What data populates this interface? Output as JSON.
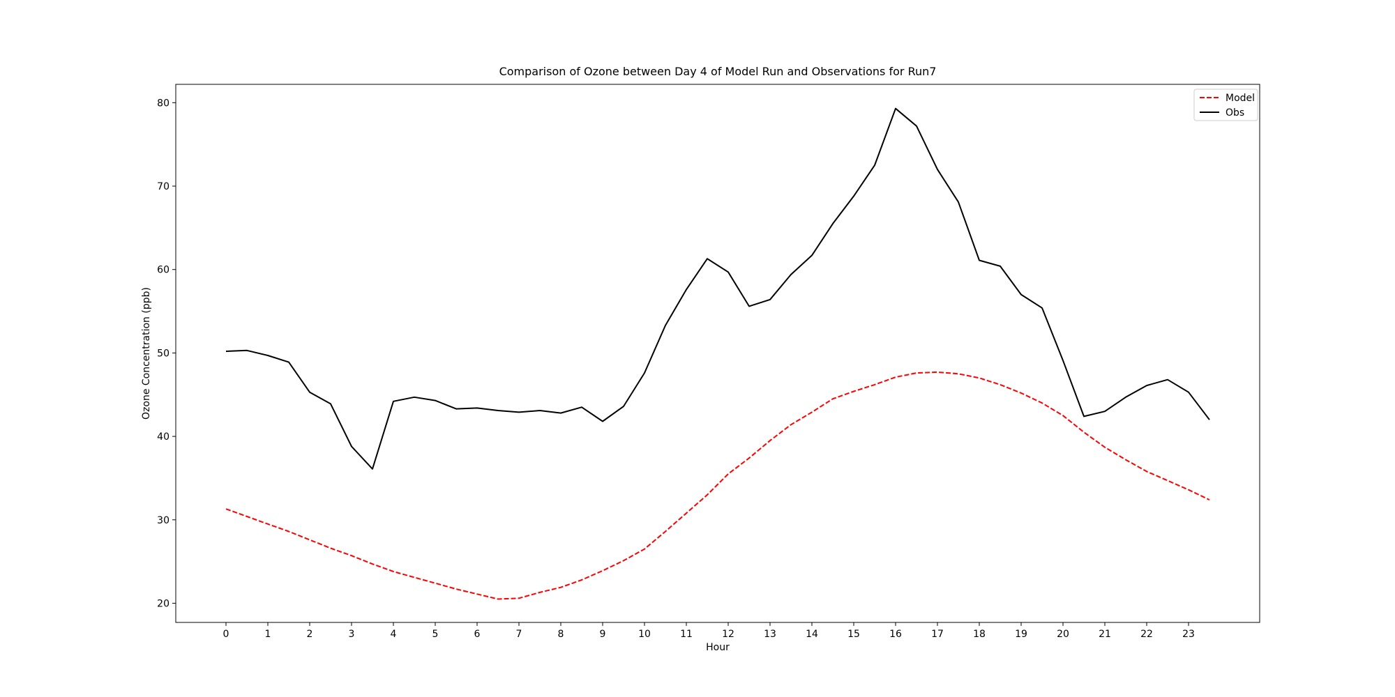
{
  "chart_data": {
    "type": "line",
    "title": "Comparison of Ozone between Day 4 of Model Run and Observations for Run7",
    "xlabel": "Hour",
    "ylabel": "Ozone Concentration (ppb)",
    "xlim": [
      -1.2,
      24.7
    ],
    "ylim": [
      17.7,
      82.2
    ],
    "xticks": [
      0,
      1,
      2,
      3,
      4,
      5,
      6,
      7,
      8,
      9,
      10,
      11,
      12,
      13,
      14,
      15,
      16,
      17,
      18,
      19,
      20,
      21,
      22,
      23
    ],
    "yticks": [
      20,
      30,
      40,
      50,
      60,
      70,
      80
    ],
    "grid": false,
    "legend_position": "top-right",
    "x": [
      0,
      0.5,
      1,
      1.5,
      2,
      2.5,
      3,
      3.5,
      4,
      4.5,
      5,
      5.5,
      6,
      6.5,
      7,
      7.5,
      8,
      8.5,
      9,
      9.5,
      10,
      10.5,
      11,
      11.5,
      12,
      12.5,
      13,
      13.5,
      14,
      14.5,
      15,
      15.5,
      16,
      16.5,
      17,
      17.5,
      18,
      18.5,
      19,
      19.5,
      20,
      20.5,
      21,
      21.5,
      22,
      22.5,
      23,
      23.5
    ],
    "series": [
      {
        "name": "Model",
        "color": "#ff0000",
        "style": "dashed",
        "values": [
          31.3,
          30.4,
          29.5,
          28.6,
          27.6,
          26.6,
          25.7,
          24.7,
          23.8,
          23.1,
          22.4,
          21.7,
          21.1,
          20.5,
          20.6,
          21.3,
          21.9,
          22.8,
          23.9,
          25.1,
          26.5,
          28.6,
          30.8,
          33.0,
          35.5,
          37.4,
          39.5,
          41.4,
          42.9,
          44.5,
          45.4,
          46.2,
          47.1,
          47.6,
          47.7,
          47.5,
          47.0,
          46.2,
          45.2,
          44.0,
          42.5,
          40.5,
          38.7,
          37.2,
          35.8,
          34.7,
          33.6,
          32.4
        ]
      },
      {
        "name": "Obs",
        "color": "#000000",
        "style": "solid",
        "values": [
          50.2,
          50.3,
          49.7,
          48.9,
          45.3,
          43.9,
          38.8,
          36.1,
          44.2,
          44.7,
          44.3,
          43.3,
          43.4,
          43.1,
          42.9,
          43.1,
          42.8,
          43.5,
          41.8,
          43.6,
          47.6,
          53.3,
          57.6,
          61.3,
          59.7,
          55.6,
          56.4,
          59.4,
          61.7,
          65.5,
          68.8,
          72.5,
          79.3,
          77.2,
          72.0,
          68.1,
          61.1,
          60.4,
          57.0,
          55.4,
          49.1,
          42.4,
          43.0,
          44.7,
          46.1,
          46.8,
          45.3,
          42.0
        ]
      }
    ]
  }
}
